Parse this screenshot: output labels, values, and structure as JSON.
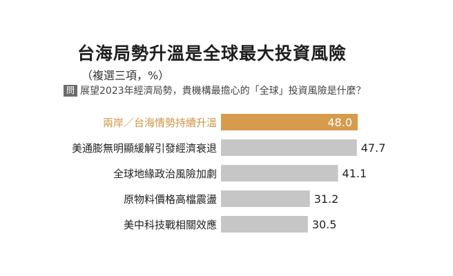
{
  "colors": {
    "highlight_bar": "#d69b4d",
    "highlight_text": "#ce9547",
    "default_bar": "#c6c6c6",
    "label_text": "#222222"
  },
  "question": {
    "badge": "問",
    "text": "展望2023年經濟局勢，貴機構最擔心的「全球」投資風險是什麼？"
  },
  "chart_data": {
    "type": "bar",
    "orientation": "horizontal",
    "title": "台海局勢升溫是全球最大投資風險",
    "subtitle": "（複選三項，%）",
    "categories": [
      "兩岸／台海情勢持續升溫",
      "美通膨無明顯緩解引發經濟衰退",
      "全球地緣政治風險加劇",
      "原物料價格高檔震盪",
      "美中科技戰相關效應"
    ],
    "values": [
      48.0,
      47.7,
      41.1,
      31.2,
      30.5
    ],
    "value_labels": [
      "48.0",
      "47.7",
      "41.1",
      "31.2",
      "30.5"
    ],
    "highlight_index": 0,
    "xlim": [
      0,
      48.0
    ],
    "grid": false,
    "legend": "none"
  }
}
